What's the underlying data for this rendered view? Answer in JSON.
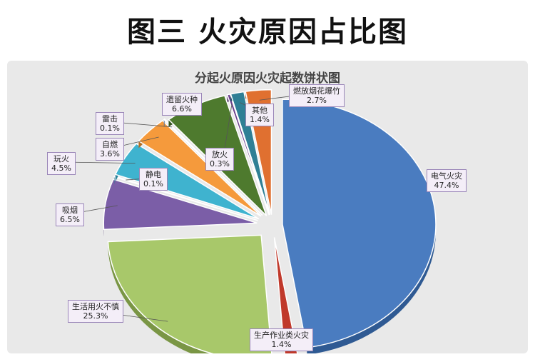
{
  "page_title": "图三   火灾原因占比图",
  "chart_data": {
    "type": "pie",
    "title": "分起火原因火灾起数饼状图",
    "unit": "%",
    "slices": [
      {
        "name": "电气火灾",
        "value": 47.4,
        "pct": "47.4%",
        "color": "#4a7cc0",
        "side": "#2f5a93"
      },
      {
        "name": "生产作业类火灾",
        "value": 1.4,
        "pct": "1.4%",
        "color": "#c0392b",
        "side": "#8c2a1f"
      },
      {
        "name": "生活用火不慎",
        "value": 25.3,
        "pct": "25.3%",
        "color": "#a8c86a",
        "side": "#7a9645"
      },
      {
        "name": "吸烟",
        "value": 6.5,
        "pct": "6.5%",
        "color": "#7b5ea7",
        "side": "#58427a"
      },
      {
        "name": "静电",
        "value": 0.1,
        "pct": "0.1%",
        "color": "#4aa8c8",
        "side": "#2f7a93"
      },
      {
        "name": "玩火",
        "value": 4.5,
        "pct": "4.5%",
        "color": "#3fb3cf",
        "side": "#2a8299"
      },
      {
        "name": "自燃",
        "value": 3.6,
        "pct": "3.6%",
        "color": "#f59a3c",
        "side": "#b36d24"
      },
      {
        "name": "雷击",
        "value": 0.1,
        "pct": "0.1%",
        "color": "#8aa4cf",
        "side": "#5f789c"
      },
      {
        "name": "遗留火种",
        "value": 6.6,
        "pct": "6.6%",
        "color": "#4e7a2e",
        "side": "#355520"
      },
      {
        "name": "放火",
        "value": 0.3,
        "pct": "0.3%",
        "color": "#6b3f8c",
        "side": "#4a2b61"
      },
      {
        "name": "其他",
        "value": 1.4,
        "pct": "1.4%",
        "color": "#2f7f95",
        "side": "#1f5a6b"
      },
      {
        "name": "燃放烟花爆竹",
        "value": 2.7,
        "pct": "2.7%",
        "color": "#e07030",
        "side": "#a04e1f"
      }
    ]
  }
}
